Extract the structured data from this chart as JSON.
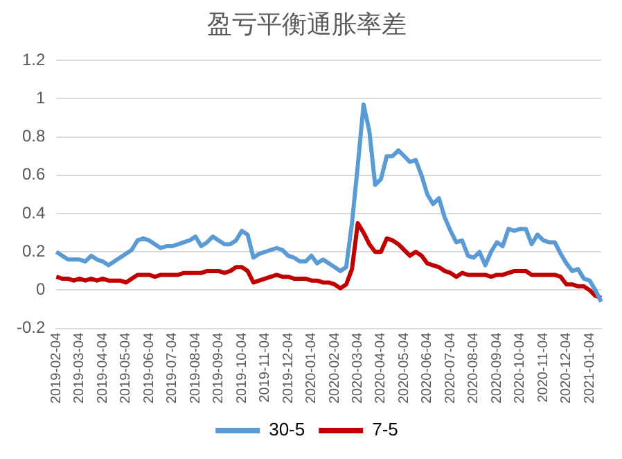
{
  "chart_data": {
    "type": "line",
    "title": "盈亏平衡通胀率差",
    "categories": [
      "2019-02-04",
      null,
      null,
      null,
      "2019-03-04",
      null,
      null,
      null,
      "2019-04-04",
      null,
      null,
      null,
      "2019-05-04",
      null,
      null,
      null,
      "2019-06-04",
      null,
      null,
      null,
      "2019-07-04",
      null,
      null,
      null,
      "2019-08-04",
      null,
      null,
      null,
      "2019-09-04",
      null,
      null,
      null,
      "2019-10-04",
      null,
      null,
      null,
      "2019-11-04",
      null,
      null,
      null,
      "2019-12-04",
      null,
      null,
      null,
      "2020-01-04",
      null,
      null,
      null,
      "2020-02-04",
      null,
      null,
      null,
      "2020-03-04",
      null,
      null,
      null,
      "2020-04-04",
      null,
      null,
      null,
      "2020-05-04",
      null,
      null,
      null,
      "2020-06-04",
      null,
      null,
      null,
      "2020-07-04",
      null,
      null,
      null,
      "2020-08-04",
      null,
      null,
      null,
      "2020-09-04",
      null,
      null,
      null,
      "2020-10-04",
      null,
      null,
      null,
      "2020-11-04",
      null,
      null,
      null,
      "2020-12-04",
      null,
      null,
      null,
      "2021-01-04",
      null,
      null
    ],
    "series": [
      {
        "name": "30-5",
        "color": "#5b9bd5",
        "values": [
          0.2,
          0.18,
          0.16,
          0.16,
          0.16,
          0.15,
          0.18,
          0.16,
          0.15,
          0.13,
          0.15,
          0.17,
          0.19,
          0.21,
          0.26,
          0.27,
          0.26,
          0.24,
          0.22,
          0.23,
          0.23,
          0.24,
          0.25,
          0.26,
          0.28,
          0.23,
          0.25,
          0.28,
          0.26,
          0.24,
          0.24,
          0.26,
          0.31,
          0.29,
          0.17,
          0.19,
          0.2,
          0.21,
          0.22,
          0.21,
          0.18,
          0.17,
          0.15,
          0.15,
          0.18,
          0.14,
          0.16,
          0.14,
          0.12,
          0.1,
          0.12,
          0.35,
          0.65,
          0.97,
          0.83,
          0.55,
          0.58,
          0.7,
          0.7,
          0.73,
          0.7,
          0.67,
          0.68,
          0.6,
          0.5,
          0.45,
          0.48,
          0.38,
          0.31,
          0.25,
          0.26,
          0.18,
          0.17,
          0.2,
          0.13,
          0.2,
          0.25,
          0.23,
          0.32,
          0.31,
          0.32,
          0.32,
          0.24,
          0.29,
          0.26,
          0.25,
          0.25,
          0.19,
          0.14,
          0.1,
          0.11,
          0.06,
          0.05,
          0.0,
          -0.06
        ]
      },
      {
        "name": "7-5",
        "color": "#c00000",
        "values": [
          0.07,
          0.06,
          0.06,
          0.05,
          0.06,
          0.05,
          0.06,
          0.05,
          0.06,
          0.05,
          0.05,
          0.05,
          0.04,
          0.06,
          0.08,
          0.08,
          0.08,
          0.07,
          0.08,
          0.08,
          0.08,
          0.08,
          0.09,
          0.09,
          0.09,
          0.09,
          0.1,
          0.1,
          0.1,
          0.09,
          0.1,
          0.12,
          0.12,
          0.1,
          0.04,
          0.05,
          0.06,
          0.07,
          0.08,
          0.07,
          0.07,
          0.06,
          0.06,
          0.06,
          0.05,
          0.05,
          0.04,
          0.04,
          0.03,
          0.01,
          0.03,
          0.11,
          0.35,
          0.3,
          0.24,
          0.2,
          0.2,
          0.27,
          0.26,
          0.24,
          0.21,
          0.18,
          0.2,
          0.18,
          0.14,
          0.13,
          0.12,
          0.1,
          0.09,
          0.07,
          0.09,
          0.08,
          0.08,
          0.08,
          0.08,
          0.07,
          0.08,
          0.08,
          0.09,
          0.1,
          0.1,
          0.1,
          0.08,
          0.08,
          0.08,
          0.08,
          0.08,
          0.07,
          0.03,
          0.03,
          0.02,
          0.02,
          0.0,
          -0.03,
          -0.04
        ]
      }
    ],
    "ylim": [
      -0.2,
      1.2
    ],
    "yticks": [
      -0.2,
      0,
      0.2,
      0.4,
      0.6,
      0.8,
      1,
      1.2
    ],
    "grid": "y",
    "legend": "bottom"
  }
}
